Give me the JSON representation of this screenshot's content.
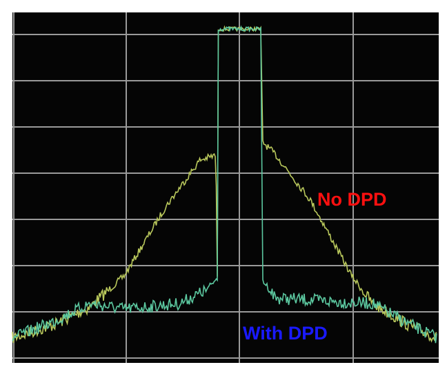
{
  "annotations": {
    "no_dpd": "No DPD",
    "with_dpd": "With DPD"
  }
}
